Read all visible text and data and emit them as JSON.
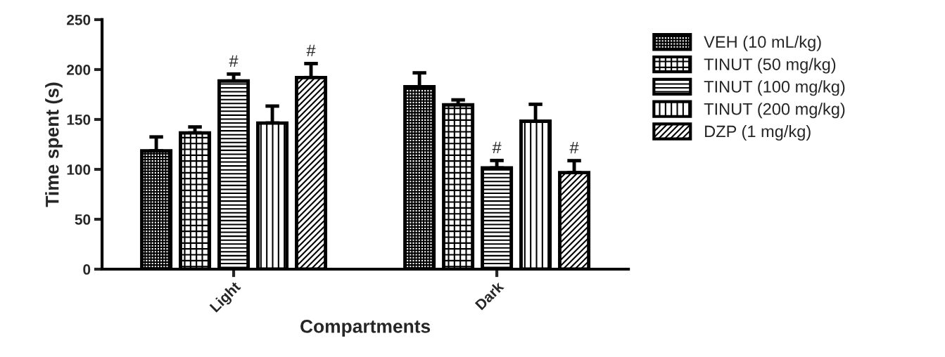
{
  "chart_data": {
    "type": "bar",
    "xlabel": "Compartments",
    "ylabel": "Time spent (s)",
    "categories": [
      "Light",
      "Dark"
    ],
    "series": [
      {
        "name": "VEH (10 mL/kg)",
        "color": "#000000",
        "values": [
          118.5,
          182.7
        ],
        "errors": [
          14,
          14
        ]
      },
      {
        "name": "TINUT (50 mg/kg)",
        "color": "#000000",
        "values": [
          136.5,
          164.6
        ],
        "errors": [
          6,
          5
        ]
      },
      {
        "name": "TINUT (100 mg/kg)",
        "color": "#000000",
        "values": [
          188.5,
          101.4
        ],
        "errors": [
          7,
          7.5
        ],
        "value_labels": [
          "#",
          "#"
        ]
      },
      {
        "name": "TINUT (200 mg/kg)",
        "color": "#000000",
        "values": [
          146.4,
          148.2
        ],
        "errors": [
          17,
          17
        ]
      },
      {
        "name": "DZP (1 mg/kg)",
        "color": "#000000",
        "values": [
          192,
          96.7
        ],
        "errors": [
          14,
          12
        ],
        "value_labels": [
          "#",
          "#"
        ]
      }
    ],
    "ylim": [
      0,
      250
    ],
    "yticks": [
      0,
      50,
      100,
      150,
      200,
      250
    ],
    "grid": false,
    "legend": "right"
  }
}
